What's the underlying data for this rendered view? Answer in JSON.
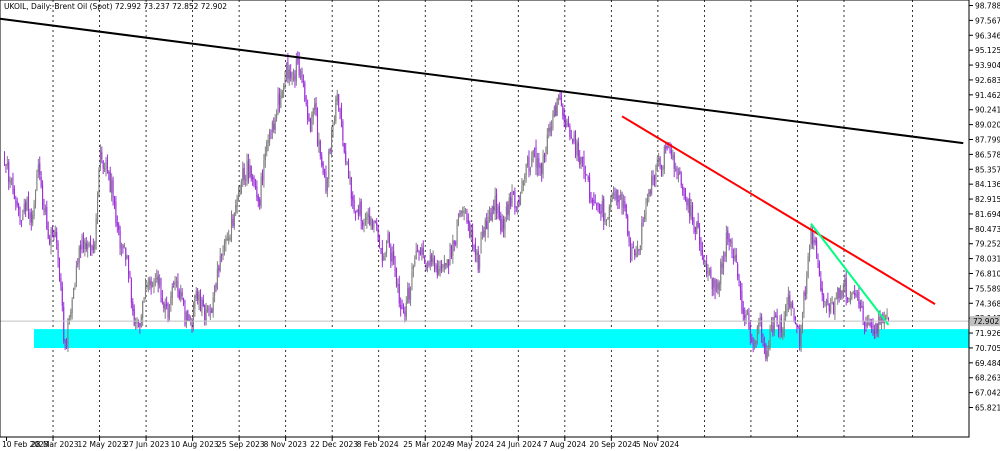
{
  "header": {
    "title": "UKOIL, Daily:  Brent Oil (Spot)  72.992 73.237 72.852 72.902"
  },
  "colors": {
    "background": "#ffffff",
    "bull_candle": "#808080",
    "bear_candle": "#9b30d9",
    "grid": "#000000",
    "upper_trendline": "#000000",
    "red_trendline": "#ff0000",
    "green_trendline": "#00ff7f",
    "support_zone": "#00ffff",
    "bid_line": "#c0c0c0"
  },
  "chart_data": {
    "type": "candlestick",
    "instrument": "UKOIL",
    "timeframe": "Daily",
    "ylim": [
      65.0,
      98.788
    ],
    "y_ticks": [
      "98.788",
      "97.567",
      "96.346",
      "95.125",
      "93.904",
      "92.683",
      "91.462",
      "90.241",
      "89.020",
      "87.799",
      "86.578",
      "85.357",
      "84.136",
      "82.915",
      "81.694",
      "80.473",
      "79.252",
      "78.031",
      "76.810",
      "75.589",
      "74.368",
      "73.147",
      "71.926",
      "70.705",
      "69.484",
      "68.263",
      "67.042",
      "65.821"
    ],
    "x_labels": [
      "10 Feb 2023",
      "28 Mar 2023",
      "12 May 2023",
      "27 Jun 2023",
      "10 Aug 2023",
      "25 Sep 2023",
      "8 Nov 2023",
      "22 Dec 2023",
      "8 Feb 2024",
      "25 Mar 2024",
      "9 May 2024",
      "24 Jun 2024",
      "7 Aug 2024",
      "20 Sep 2024",
      "5 Nov 2024"
    ],
    "current_price": 72.902,
    "ohlc_last": {
      "open": 72.992,
      "high": 73.237,
      "low": 72.852,
      "close": 72.902
    },
    "anchors": [
      [
        0,
        85.5
      ],
      [
        4,
        85.0
      ],
      [
        8,
        82.0
      ],
      [
        12,
        81.5
      ],
      [
        16,
        82.5
      ],
      [
        20,
        80.8
      ],
      [
        24,
        85.3
      ],
      [
        28,
        82.5
      ],
      [
        32,
        79.5
      ],
      [
        36,
        80.5
      ],
      [
        40,
        76.0
      ],
      [
        42,
        72.0
      ],
      [
        44,
        71.5
      ],
      [
        48,
        75.0
      ],
      [
        52,
        78.0
      ],
      [
        56,
        79.5
      ],
      [
        60,
        79.0
      ],
      [
        64,
        79.5
      ],
      [
        68,
        86.5
      ],
      [
        72,
        85.2
      ],
      [
        76,
        84.0
      ],
      [
        80,
        80.0
      ],
      [
        84,
        79.0
      ],
      [
        88,
        77.0
      ],
      [
        92,
        73.0
      ],
      [
        96,
        72.0
      ],
      [
        100,
        76.0
      ],
      [
        104,
        75.5
      ],
      [
        108,
        77.0
      ],
      [
        112,
        74.5
      ],
      [
        116,
        73.5
      ],
      [
        120,
        76.0
      ],
      [
        124,
        75.5
      ],
      [
        128,
        73.0
      ],
      [
        132,
        72.5
      ],
      [
        136,
        75.0
      ],
      [
        140,
        74.0
      ],
      [
        144,
        73.5
      ],
      [
        148,
        74.5
      ],
      [
        152,
        77.0
      ],
      [
        156,
        79.0
      ],
      [
        160,
        80.0
      ],
      [
        164,
        82.5
      ],
      [
        168,
        84.5
      ],
      [
        172,
        85.5
      ],
      [
        176,
        84.5
      ],
      [
        180,
        82.0
      ],
      [
        184,
        86.0
      ],
      [
        188,
        88.0
      ],
      [
        192,
        89.5
      ],
      [
        196,
        92.0
      ],
      [
        200,
        93.5
      ],
      [
        204,
        92.5
      ],
      [
        208,
        94.0
      ],
      [
        212,
        92.0
      ],
      [
        216,
        89.0
      ],
      [
        220,
        90.0
      ],
      [
        224,
        86.0
      ],
      [
        228,
        84.0
      ],
      [
        232,
        88.5
      ],
      [
        236,
        91.5
      ],
      [
        240,
        88.0
      ],
      [
        244,
        85.0
      ],
      [
        248,
        82.5
      ],
      [
        252,
        82.0
      ],
      [
        256,
        80.5
      ],
      [
        260,
        81.5
      ],
      [
        264,
        80.0
      ],
      [
        268,
        78.5
      ],
      [
        272,
        79.5
      ],
      [
        276,
        77.5
      ],
      [
        280,
        74.5
      ],
      [
        284,
        73.8
      ],
      [
        288,
        76.0
      ],
      [
        292,
        79.0
      ],
      [
        296,
        78.5
      ],
      [
        300,
        77.5
      ],
      [
        304,
        78.0
      ],
      [
        308,
        76.5
      ],
      [
        312,
        77.0
      ],
      [
        316,
        78.5
      ],
      [
        320,
        80.0
      ],
      [
        324,
        82.5
      ],
      [
        328,
        81.5
      ],
      [
        332,
        79.5
      ],
      [
        336,
        77.5
      ],
      [
        340,
        80.5
      ],
      [
        344,
        81.5
      ],
      [
        348,
        82.5
      ],
      [
        352,
        81.0
      ],
      [
        356,
        81.5
      ],
      [
        360,
        83.0
      ],
      [
        364,
        82.5
      ],
      [
        368,
        84.5
      ],
      [
        372,
        86.0
      ],
      [
        376,
        86.5
      ],
      [
        380,
        85.0
      ],
      [
        384,
        87.0
      ],
      [
        388,
        89.0
      ],
      [
        392,
        91.0
      ],
      [
        396,
        90.0
      ],
      [
        400,
        88.5
      ],
      [
        404,
        87.5
      ],
      [
        408,
        86.5
      ],
      [
        412,
        85.0
      ],
      [
        416,
        83.0
      ],
      [
        420,
        82.5
      ],
      [
        424,
        82.0
      ],
      [
        428,
        81.5
      ],
      [
        432,
        83.5
      ],
      [
        436,
        83.0
      ],
      [
        440,
        82.0
      ],
      [
        444,
        78.5
      ],
      [
        448,
        78.0
      ],
      [
        452,
        80.5
      ],
      [
        456,
        82.5
      ],
      [
        460,
        85.0
      ],
      [
        464,
        85.5
      ],
      [
        468,
        86.5
      ],
      [
        472,
        87.0
      ],
      [
        476,
        85.0
      ],
      [
        480,
        84.0
      ],
      [
        484,
        82.5
      ],
      [
        488,
        81.5
      ],
      [
        492,
        80.0
      ],
      [
        496,
        78.0
      ],
      [
        500,
        77.0
      ],
      [
        504,
        75.5
      ],
      [
        508,
        77.0
      ],
      [
        512,
        79.5
      ],
      [
        516,
        79.0
      ],
      [
        520,
        76.5
      ],
      [
        524,
        74.0
      ],
      [
        528,
        72.5
      ],
      [
        532,
        71.0
      ],
      [
        536,
        73.0
      ],
      [
        540,
        70.0
      ],
      [
        544,
        72.5
      ],
      [
        548,
        73.0
      ],
      [
        552,
        72.0
      ],
      [
        556,
        74.5
      ],
      [
        560,
        73.5
      ],
      [
        564,
        71.5
      ],
      [
        568,
        75.5
      ],
      [
        572,
        80.5
      ],
      [
        576,
        78.0
      ],
      [
        580,
        75.0
      ],
      [
        584,
        74.5
      ],
      [
        588,
        73.5
      ],
      [
        592,
        75.5
      ],
      [
        596,
        76.0
      ],
      [
        600,
        74.5
      ],
      [
        604,
        75.0
      ],
      [
        608,
        73.5
      ],
      [
        612,
        72.5
      ],
      [
        616,
        71.5
      ],
      [
        620,
        72.5
      ],
      [
        624,
        73.0
      ],
      [
        627,
        72.9
      ]
    ],
    "support_zone": {
      "from": 70.7,
      "to": 72.25
    },
    "trendlines": [
      {
        "name": "long-term-resistance",
        "color": "black",
        "p1": [
          -10,
          97.8
        ],
        "p2": [
          680,
          87.5
        ]
      },
      {
        "name": "red-resistance",
        "color": "red",
        "p1": [
          438,
          89.7
        ],
        "p2": [
          660,
          74.3
        ]
      },
      {
        "name": "green-resistance",
        "color": "green",
        "p1": [
          572,
          80.9
        ],
        "p2": [
          627,
          72.6
        ]
      }
    ]
  }
}
